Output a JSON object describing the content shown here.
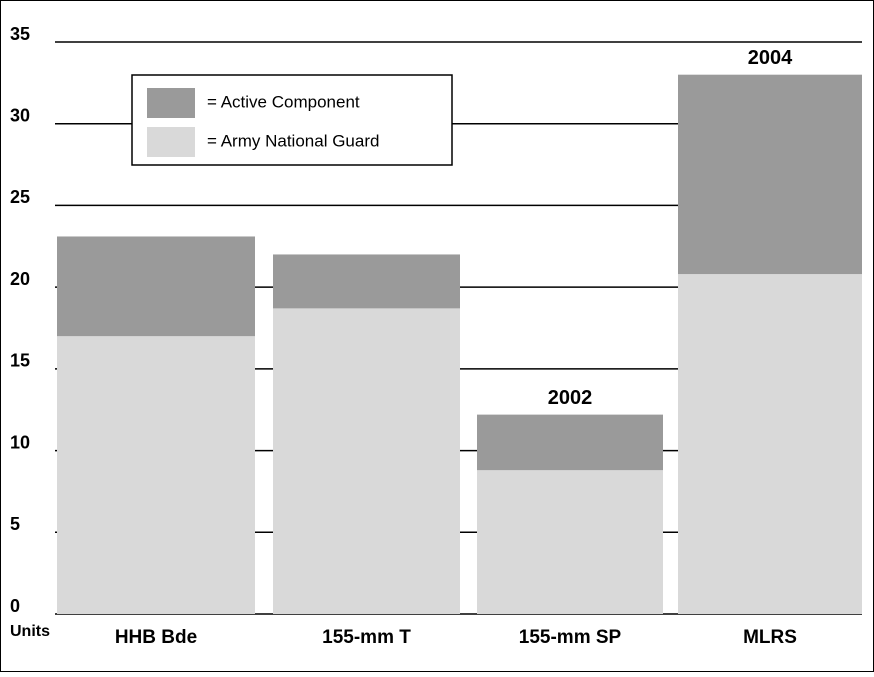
{
  "chart_data": {
    "type": "stacked_bar",
    "categories": [
      "HHB Bde",
      "155-mm T",
      "155-mm SP",
      "MLRS"
    ],
    "series": [
      {
        "name": "= Army National Guard",
        "color": "#d9d9d9",
        "values": [
          17,
          18.7,
          8.8,
          20.8
        ]
      },
      {
        "name": "= Active Component",
        "color": "#9a9a9a",
        "values": [
          6.1,
          3.3,
          3.4,
          12.2
        ]
      }
    ],
    "y_axis_label": "Units",
    "ylim": [
      0,
      35
    ],
    "yticks": [
      0,
      5,
      10,
      15,
      20,
      25,
      30,
      35
    ],
    "grid": true,
    "annotations": [
      {
        "text": "2002",
        "category": 2
      },
      {
        "text": "2004",
        "category": 3
      }
    ],
    "legend": "upper left"
  }
}
